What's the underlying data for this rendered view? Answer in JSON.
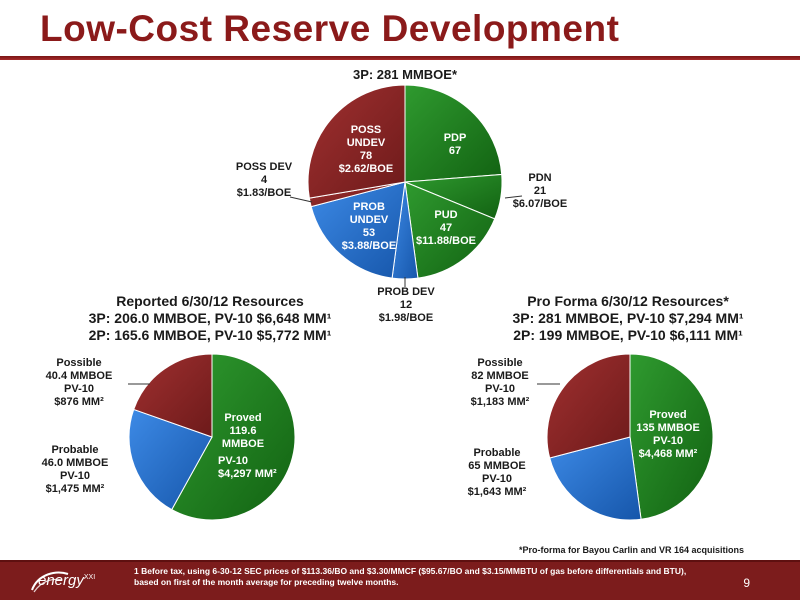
{
  "slide": {
    "title": "Low-Cost Reserve Development",
    "page_number": "9"
  },
  "colors": {
    "proved": "#1e7a1e",
    "possible": "#8b2323",
    "probable": "#1e6fd1",
    "accent": "#8B1A1A"
  },
  "chart_data": [
    {
      "type": "pie",
      "title": "3P: 281 MMBOE*",
      "unit": "MMBOE",
      "slices": [
        {
          "name": "PDP",
          "value": 67,
          "price": "",
          "color": "#1e7a1e",
          "label_lines": [
            "PDP",
            "67"
          ]
        },
        {
          "name": "PDN",
          "value": 21,
          "price": "$6.07/BOE",
          "color": "#1e7a1e",
          "label_lines": [
            "PDN",
            "21",
            "$6.07/BOE"
          ]
        },
        {
          "name": "PUD",
          "value": 47,
          "price": "$11.88/BOE",
          "color": "#1e7a1e",
          "label_lines": [
            "PUD",
            "47",
            "$11.88/BOE"
          ]
        },
        {
          "name": "PROB DEV",
          "value": 12,
          "price": "$1.98/BOE",
          "color": "#1e6fd1",
          "label_lines": [
            "PROB DEV",
            "12",
            "$1.98/BOE"
          ]
        },
        {
          "name": "PROB UNDEV",
          "value": 53,
          "price": "$3.88/BOE",
          "color": "#1e6fd1",
          "label_lines": [
            "PROB",
            "UNDEV",
            "53",
            "$3.88/BOE"
          ]
        },
        {
          "name": "POSS DEV",
          "value": 4,
          "price": "$1.83/BOE",
          "color": "#8b2323",
          "label_lines": [
            "POSS DEV",
            "4",
            "$1.83/BOE"
          ]
        },
        {
          "name": "POSS UNDEV",
          "value": 78,
          "price": "$2.62/BOE",
          "color": "#8b2323",
          "label_lines": [
            "POSS",
            "UNDEV",
            "78",
            "$2.62/BOE"
          ]
        }
      ]
    },
    {
      "type": "pie",
      "title": "Reported 6/30/12 Resources",
      "subtitle_lines": [
        "3P: 206.0 MMBOE, PV-10 $6,648 MM¹",
        "2P: 165.6 MMBOE, PV-10 $5,772 MM¹"
      ],
      "slices": [
        {
          "name": "Proved",
          "value": 119.6,
          "color": "#1e7a1e",
          "label_lines": [
            "Proved",
            "119.6",
            "MMBOE"
          ],
          "pv_lines": [
            "PV-10",
            "$4,297 MM²"
          ]
        },
        {
          "name": "Probable",
          "value": 46.0,
          "color": "#1e6fd1",
          "label_lines": [
            "Probable",
            "46.0 MMBOE",
            "PV-10",
            "$1,475 MM²"
          ]
        },
        {
          "name": "Possible",
          "value": 40.4,
          "color": "#8b2323",
          "label_lines": [
            "Possible",
            "40.4 MMBOE",
            "PV-10",
            "$876 MM²"
          ]
        }
      ]
    },
    {
      "type": "pie",
      "title": "Pro Forma 6/30/12 Resources*",
      "subtitle_lines": [
        "3P: 281 MMBOE, PV-10 $7,294 MM¹",
        "2P: 199 MMBOE, PV-10 $6,111 MM¹"
      ],
      "slices": [
        {
          "name": "Proved",
          "value": 135,
          "color": "#1e7a1e",
          "label_lines": [
            "Proved",
            "135 MMBOE",
            "PV-10",
            "$4,468 MM²"
          ]
        },
        {
          "name": "Probable",
          "value": 65,
          "color": "#1e6fd1",
          "label_lines": [
            "Probable",
            "65 MMBOE",
            "PV-10",
            "$1,643 MM²"
          ]
        },
        {
          "name": "Possible",
          "value": 82,
          "color": "#8b2323",
          "label_lines": [
            "Possible",
            "82 MMBOE",
            "PV-10",
            "$1,183 MM²"
          ]
        }
      ]
    }
  ],
  "footnotes": {
    "pro_forma": "*Pro-forma for Bayou Carlin and VR 164 acquisitions",
    "note1": "1 Before tax, using 6-30-12 SEC prices of $113.36/BO and $3.30/MMCF ($95.67/BO and $3.15/MMBTU of gas before differentials and BTU), based on first of the month average for preceding twelve months."
  },
  "logo": {
    "text": "energy",
    "suffix": "XXI"
  }
}
